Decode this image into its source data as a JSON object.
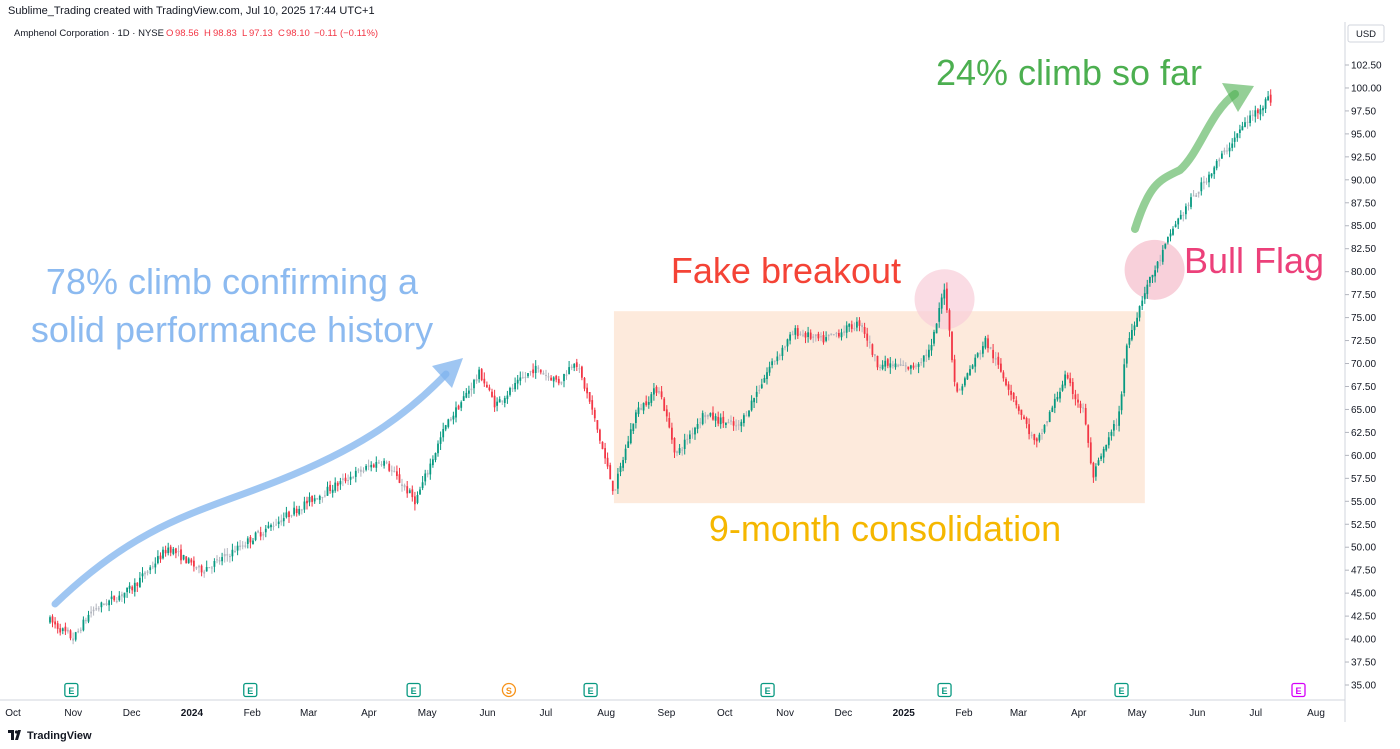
{
  "header": {
    "attribution": "Sublime_Trading created with TradingView.com, Jul 10, 2025 17:44 UTC+1",
    "symbol": "Amphenol Corporation · 1D · NYSE",
    "ohlc": {
      "o_label": "O",
      "o": "98.56",
      "h_label": "H",
      "h": "98.83",
      "l_label": "L",
      "l": "97.13",
      "c_label": "C",
      "c": "98.10",
      "change": "−0.11 (−0.11%)"
    },
    "currency": "USD"
  },
  "footer": {
    "brand": "TradingView"
  },
  "colors": {
    "up": "#089981",
    "down": "#f23645",
    "neutral": "#b2b5be",
    "annotation_blue": "#7fb3ee",
    "annotation_green": "#4caf50",
    "annotation_red": "#f44336",
    "annotation_orange": "#f5b700",
    "annotation_pink": "#ec407a",
    "box_fill": "#fde6d6",
    "circle_fill": "#f8cdd8"
  },
  "chart_data": {
    "type": "candlestick",
    "title": "Amphenol Corporation · 1D · NYSE",
    "y_ticks": [
      "102.50",
      "100.00",
      "97.50",
      "95.00",
      "92.50",
      "90.00",
      "87.50",
      "85.00",
      "82.50",
      "80.00",
      "77.50",
      "75.00",
      "72.50",
      "70.00",
      "67.50",
      "65.00",
      "62.50",
      "60.00",
      "57.50",
      "55.00",
      "52.50",
      "50.00",
      "47.50",
      "45.00",
      "42.50",
      "40.00",
      "37.50",
      "35.00"
    ],
    "ylim": [
      33.5,
      104.5
    ],
    "x_ticks": [
      "Oct",
      "Nov",
      "Dec",
      "2024",
      "Feb",
      "Mar",
      "Apr",
      "May",
      "Jun",
      "Jul",
      "Aug",
      "Sep",
      "Oct",
      "Nov",
      "Dec",
      "2025",
      "Feb",
      "Mar",
      "Apr",
      "May",
      "Jun",
      "Jul",
      "Aug"
    ],
    "price_path": [
      {
        "date": "2023-10-20",
        "price": 42.0
      },
      {
        "date": "2023-11-01",
        "price": 40.0
      },
      {
        "date": "2023-11-10",
        "price": 43.0
      },
      {
        "date": "2023-12-01",
        "price": 45.5
      },
      {
        "date": "2023-12-20",
        "price": 50.0
      },
      {
        "date": "2024-01-05",
        "price": 47.5
      },
      {
        "date": "2024-01-15",
        "price": 48.5
      },
      {
        "date": "2024-02-01",
        "price": 51.0
      },
      {
        "date": "2024-03-01",
        "price": 55.0
      },
      {
        "date": "2024-03-25",
        "price": 58.0
      },
      {
        "date": "2024-04-08",
        "price": 59.5
      },
      {
        "date": "2024-04-25",
        "price": 55.0
      },
      {
        "date": "2024-05-10",
        "price": 63.0
      },
      {
        "date": "2024-05-28",
        "price": 69.0
      },
      {
        "date": "2024-06-05",
        "price": 65.5
      },
      {
        "date": "2024-06-25",
        "price": 69.5
      },
      {
        "date": "2024-07-08",
        "price": 68.0
      },
      {
        "date": "2024-07-16",
        "price": 70.5
      },
      {
        "date": "2024-07-24",
        "price": 65.5
      },
      {
        "date": "2024-08-05",
        "price": 56.0
      },
      {
        "date": "2024-08-16",
        "price": 64.5
      },
      {
        "date": "2024-08-28",
        "price": 67.5
      },
      {
        "date": "2024-09-06",
        "price": 60.0
      },
      {
        "date": "2024-09-20",
        "price": 64.5
      },
      {
        "date": "2024-10-08",
        "price": 63.0
      },
      {
        "date": "2024-10-25",
        "price": 70.0
      },
      {
        "date": "2024-11-06",
        "price": 73.5
      },
      {
        "date": "2024-11-20",
        "price": 72.5
      },
      {
        "date": "2024-12-10",
        "price": 74.5
      },
      {
        "date": "2024-12-18",
        "price": 70.0
      },
      {
        "date": "2025-01-05",
        "price": 69.5
      },
      {
        "date": "2025-01-15",
        "price": 71.5
      },
      {
        "date": "2025-01-22",
        "price": 78.5
      },
      {
        "date": "2025-01-28",
        "price": 66.5
      },
      {
        "date": "2025-02-12",
        "price": 72.5
      },
      {
        "date": "2025-02-25",
        "price": 67.0
      },
      {
        "date": "2025-03-10",
        "price": 61.0
      },
      {
        "date": "2025-03-25",
        "price": 68.5
      },
      {
        "date": "2025-04-04",
        "price": 64.5
      },
      {
        "date": "2025-04-08",
        "price": 57.5
      },
      {
        "date": "2025-04-22",
        "price": 64.5
      },
      {
        "date": "2025-04-25",
        "price": 71.5
      },
      {
        "date": "2025-05-05",
        "price": 78.0
      },
      {
        "date": "2025-05-12",
        "price": 81.0
      },
      {
        "date": "2025-05-20",
        "price": 85.0
      },
      {
        "date": "2025-06-10",
        "price": 91.5
      },
      {
        "date": "2025-06-25",
        "price": 96.0
      },
      {
        "date": "2025-07-08",
        "price": 99.0
      },
      {
        "date": "2025-07-10",
        "price": 98.1
      }
    ],
    "event_markers": [
      {
        "label": "E",
        "date": "2023-10-31",
        "color": "#089981"
      },
      {
        "label": "E",
        "date": "2024-01-31",
        "color": "#089981"
      },
      {
        "label": "E",
        "date": "2024-04-24",
        "color": "#089981"
      },
      {
        "label": "S",
        "date": "2024-06-12",
        "color": "#f7931a"
      },
      {
        "label": "E",
        "date": "2024-07-24",
        "color": "#089981"
      },
      {
        "label": "E",
        "date": "2024-10-23",
        "color": "#089981"
      },
      {
        "label": "E",
        "date": "2025-01-22",
        "color": "#089981"
      },
      {
        "label": "E",
        "date": "2025-04-23",
        "color": "#089981"
      },
      {
        "label": "E",
        "date": "2025-07-23",
        "color": "#d500f9"
      }
    ],
    "annotations": {
      "climb_text": [
        "78% climb confirming a",
        "solid performance history"
      ],
      "fake_breakout": "Fake breakout",
      "consolidation": "9-month consolidation",
      "bull_flag": "Bull Flag",
      "climb_so_far": "24% climb so far",
      "consolidation_range": [
        54.8,
        75.7
      ]
    }
  }
}
